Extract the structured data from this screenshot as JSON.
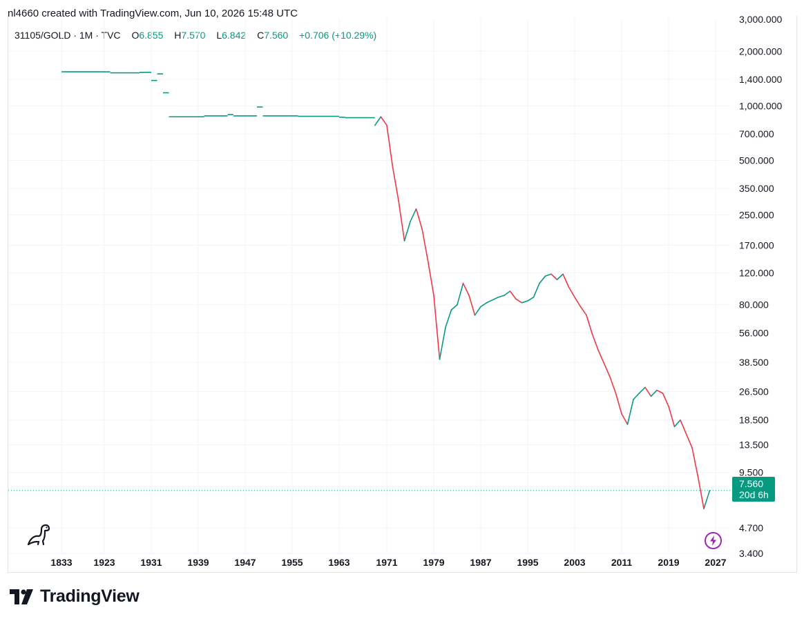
{
  "header": {
    "credit": "nl4660 created with TradingView.com, Jun 10, 2026 15:48 UTC"
  },
  "legend": {
    "symbol": "31105/GOLD · 1M · TVC",
    "o_label": "O",
    "o_value": "6.855",
    "h_label": "H",
    "h_value": "7.570",
    "l_label": "L",
    "l_value": "6.842",
    "c_label": "C",
    "c_value": "7.560",
    "change": "+0.706 (+10.29%)"
  },
  "price_tag": {
    "price": "7.560",
    "countdown": "20d 6h"
  },
  "brand": {
    "name": "TradingView"
  },
  "icons": {
    "logo": "tradingview-logo-icon",
    "mascot": "dinosaur-icon",
    "lightning": "lightning-icon"
  },
  "colors": {
    "up": "#089981",
    "down": "#f23645",
    "accent": "#089981",
    "lightning": "#9c27b0"
  },
  "chart_data": {
    "type": "line",
    "title": "31105/GOLD · 1M · TVC",
    "xlabel": "",
    "ylabel": "",
    "y_scale": "log",
    "grid": true,
    "legend": "top-left",
    "x_ticks": [
      "1833",
      "1923",
      "1931",
      "1939",
      "1947",
      "1955",
      "1963",
      "1971",
      "1979",
      "1987",
      "1995",
      "2003",
      "2011",
      "2019",
      "2027"
    ],
    "y_ticks": [
      "3,000.000",
      "2,000.000",
      "1,400.000",
      "1,000.000",
      "700.000",
      "500.000",
      "350.000",
      "250.000",
      "170.000",
      "120.000",
      "80.000",
      "56.000",
      "38.500",
      "26.500",
      "18.500",
      "13.500",
      "9.500",
      "7.560",
      "4.700",
      "3.400"
    ],
    "ylim": [
      3.4,
      3000
    ],
    "last_price": 7.56,
    "series": [
      {
        "values": [
          [
            1833,
            1540
          ],
          [
            1923,
            1540
          ],
          [
            1924,
            1520
          ],
          [
            1929,
            1530
          ],
          [
            1931,
            1380
          ],
          [
            1932,
            1500
          ],
          [
            1933,
            1180
          ],
          [
            1934,
            870
          ],
          [
            1939,
            870
          ],
          [
            1940,
            880
          ],
          [
            1944,
            895
          ],
          [
            1945,
            880
          ],
          [
            1949,
            985
          ],
          [
            1950,
            880
          ],
          [
            1956,
            875
          ],
          [
            1963,
            865
          ],
          [
            1964,
            860
          ],
          [
            1968,
            860
          ],
          [
            1969,
            780
          ],
          [
            1970,
            870
          ],
          [
            1971,
            780
          ],
          [
            1972,
            460
          ],
          [
            1973,
            300
          ],
          [
            1974,
            180
          ],
          [
            1975,
            230
          ],
          [
            1976,
            270
          ],
          [
            1977,
            210
          ],
          [
            1978,
            140
          ],
          [
            1979,
            90
          ],
          [
            1980,
            40
          ],
          [
            1981,
            60
          ],
          [
            1982,
            75
          ],
          [
            1983,
            80
          ],
          [
            1984,
            105
          ],
          [
            1985,
            90
          ],
          [
            1986,
            70
          ],
          [
            1987,
            78
          ],
          [
            1988,
            82
          ],
          [
            1989,
            85
          ],
          [
            1990,
            88
          ],
          [
            1991,
            90
          ],
          [
            1992,
            95
          ],
          [
            1993,
            86
          ],
          [
            1994,
            82
          ],
          [
            1995,
            84
          ],
          [
            1996,
            88
          ],
          [
            1997,
            105
          ],
          [
            1998,
            115
          ],
          [
            1999,
            118
          ],
          [
            2000,
            110
          ],
          [
            2001,
            118
          ],
          [
            2002,
            100
          ],
          [
            2003,
            88
          ],
          [
            2004,
            78
          ],
          [
            2005,
            70
          ],
          [
            2006,
            55
          ],
          [
            2007,
            45
          ],
          [
            2008,
            38
          ],
          [
            2009,
            32
          ],
          [
            2010,
            26
          ],
          [
            2011,
            20
          ],
          [
            2012,
            17.5
          ],
          [
            2013,
            24
          ],
          [
            2014,
            26
          ],
          [
            2015,
            28
          ],
          [
            2016,
            25
          ],
          [
            2017,
            27
          ],
          [
            2018,
            26
          ],
          [
            2019,
            22
          ],
          [
            2020,
            17
          ],
          [
            2021,
            18.5
          ],
          [
            2022,
            15.5
          ],
          [
            2023,
            13
          ],
          [
            2024,
            9
          ],
          [
            2025,
            6
          ],
          [
            2026,
            7.56
          ]
        ]
      }
    ]
  }
}
